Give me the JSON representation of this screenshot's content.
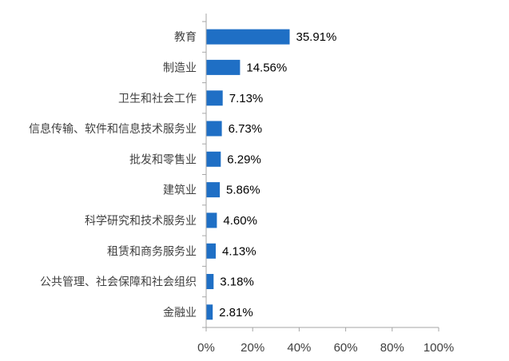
{
  "chart_data": {
    "type": "bar",
    "orientation": "horizontal",
    "categories": [
      "教育",
      "制造业",
      "卫生和社会工作",
      "信息传输、软件和信息技术服务业",
      "批发和零售业",
      "建筑业",
      "科学研究和技术服务业",
      "租赁和商务服务业",
      "公共管理、社会保障和社会组织",
      "金融业"
    ],
    "values": [
      35.91,
      14.56,
      7.13,
      6.73,
      6.29,
      5.86,
      4.6,
      4.13,
      3.18,
      2.81
    ],
    "value_labels": [
      "35.91%",
      "14.56%",
      "7.13%",
      "6.73%",
      "6.29%",
      "5.86%",
      "4.60%",
      "4.13%",
      "3.18%",
      "2.81%"
    ],
    "xticks": [
      0,
      20,
      40,
      60,
      80,
      100
    ],
    "xtick_labels": [
      "0%",
      "20%",
      "40%",
      "60%",
      "80%",
      "100%"
    ],
    "xlim": [
      0,
      100
    ],
    "title": "",
    "xlabel": "",
    "ylabel": "",
    "grid": false,
    "legend": "none",
    "colors": {
      "bar": "#1f6fc5",
      "axis": "#a6a6a6"
    }
  }
}
